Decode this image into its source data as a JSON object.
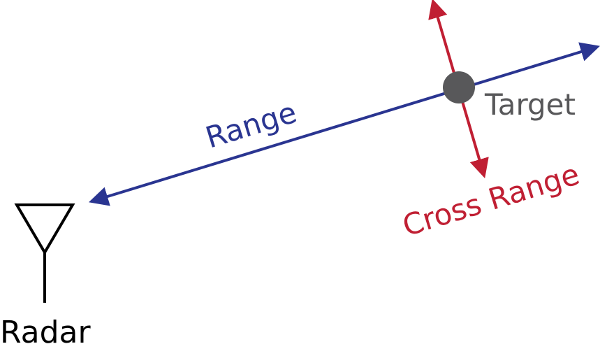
{
  "labels": {
    "range": "Range",
    "target": "Target",
    "cross_range": "Cross Range",
    "radar": "Radar"
  },
  "colors": {
    "range": "#2a3591",
    "cross_range": "#c01f33",
    "target_dot": "#58585a",
    "target_text": "#58585a",
    "radar": "#000000"
  },
  "icons": {
    "radar": "antenna-icon",
    "target": "target-dot-icon"
  }
}
